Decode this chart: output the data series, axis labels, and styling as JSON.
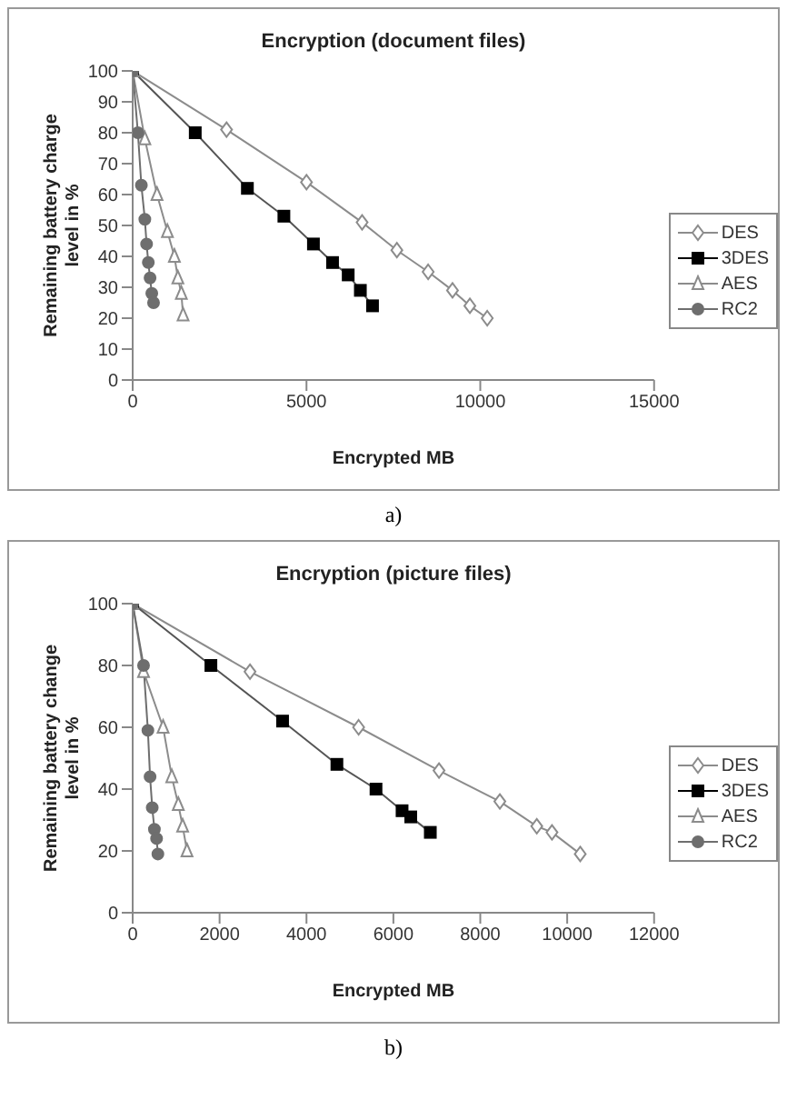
{
  "chart_data": [
    {
      "type": "line",
      "title": "Encryption (document files)",
      "xlabel": "Encrypted MB",
      "ylabel": "Remaining battery charge level in %",
      "xlim": [
        0,
        15000
      ],
      "xticks": [
        0,
        5000,
        10000,
        15000
      ],
      "ylim": [
        0,
        100
      ],
      "yticks": [
        0,
        10,
        20,
        30,
        40,
        50,
        60,
        70,
        80,
        90,
        100
      ],
      "legend": "right",
      "grid": false,
      "annotations": [
        "a)"
      ],
      "series": [
        {
          "name": "DES",
          "color": "#8c8c8c",
          "marker": "diamond",
          "x": [
            0,
            2700,
            5000,
            6600,
            7600,
            8500,
            9200,
            9700,
            10200
          ],
          "values": [
            100,
            81,
            64,
            51,
            42,
            35,
            29,
            24,
            20
          ]
        },
        {
          "name": "3DES",
          "color": "#000000",
          "marker": "square",
          "x": [
            0,
            1800,
            3300,
            4350,
            5200,
            5750,
            6200,
            6550,
            6900
          ],
          "values": [
            100,
            80,
            62,
            53,
            44,
            38,
            34,
            29,
            24
          ]
        },
        {
          "name": "AES",
          "color": "#8c8c8c",
          "marker": "triangle",
          "x": [
            0,
            350,
            700,
            1000,
            1200,
            1300,
            1400,
            1450
          ],
          "values": [
            100,
            78,
            60,
            48,
            40,
            33,
            28,
            21
          ]
        },
        {
          "name": "RC2",
          "color": "#6e6e6e",
          "marker": "circle",
          "x": [
            0,
            150,
            250,
            350,
            400,
            450,
            500,
            550,
            600
          ],
          "values": [
            100,
            80,
            63,
            52,
            44,
            38,
            33,
            28,
            25
          ]
        }
      ]
    },
    {
      "type": "line",
      "title": "Encryption (picture files)",
      "xlabel": "Encrypted MB",
      "ylabel": "Remaining battery change level in %",
      "xlim": [
        0,
        12000
      ],
      "xticks": [
        0,
        2000,
        4000,
        6000,
        8000,
        10000,
        12000
      ],
      "ylim": [
        0,
        100
      ],
      "yticks": [
        0,
        20,
        40,
        60,
        80,
        100
      ],
      "legend": "right",
      "grid": false,
      "annotations": [
        "b)"
      ],
      "series": [
        {
          "name": "DES",
          "color": "#8c8c8c",
          "marker": "diamond",
          "x": [
            0,
            2700,
            5200,
            7050,
            8450,
            9300,
            9650,
            10300
          ],
          "values": [
            100,
            78,
            60,
            46,
            36,
            28,
            26,
            19
          ]
        },
        {
          "name": "3DES",
          "color": "#000000",
          "marker": "square",
          "x": [
            0,
            1800,
            3450,
            4700,
            5600,
            6200,
            6400,
            6850
          ],
          "values": [
            100,
            80,
            62,
            48,
            40,
            33,
            31,
            26
          ]
        },
        {
          "name": "AES",
          "color": "#8c8c8c",
          "marker": "triangle",
          "x": [
            0,
            250,
            700,
            900,
            1050,
            1150,
            1250
          ],
          "values": [
            100,
            78,
            60,
            44,
            35,
            28,
            20
          ]
        },
        {
          "name": "RC2",
          "color": "#6e6e6e",
          "marker": "circle",
          "x": [
            0,
            250,
            350,
            400,
            450,
            500,
            550,
            580
          ],
          "values": [
            100,
            80,
            59,
            44,
            34,
            27,
            24,
            19
          ]
        }
      ]
    }
  ]
}
